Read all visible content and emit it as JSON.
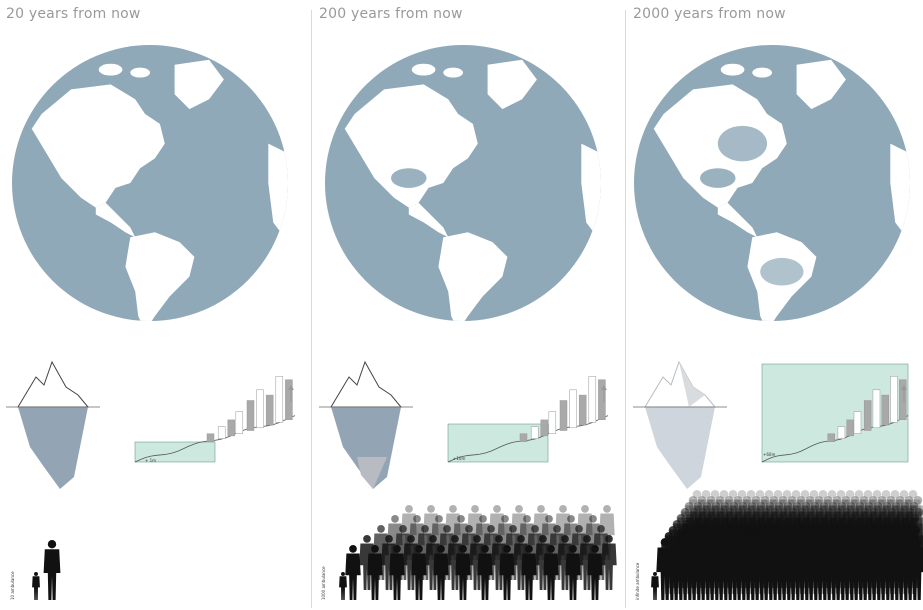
{
  "colors": {
    "ocean": "#8fa9b8",
    "land": "#ffffff",
    "iceberg_under": "#93a5b5",
    "iceberg_melt": "#b8bcc2",
    "iceberg_faded": "#cfd5dc",
    "sea": "#cde9df",
    "sea_line": "#6f9f8a",
    "people": "#111111",
    "title": "#9a9a9a"
  },
  "panels": [
    {
      "title": "20 years from now",
      "sea_label": "+ 1m",
      "refugee_label": "10 ambulance",
      "people_count": 2,
      "sea_level": 1
    },
    {
      "title": "200 years from now",
      "sea_label": "+10m",
      "refugee_label": "1000 ambulance",
      "people_count": 40,
      "sea_level": 2
    },
    {
      "title": "2000 years from now",
      "sea_label": "+60m",
      "refugee_label": "infinite ambulance",
      "people_count": 120,
      "sea_level": 3
    }
  ]
}
